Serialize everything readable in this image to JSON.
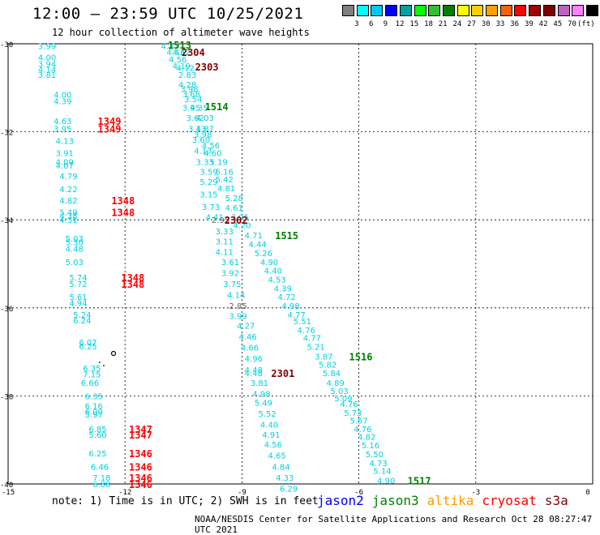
{
  "header": {
    "title": "12:00 – 23:59 UTC 10/25/2021",
    "subtitle": "12 hour collection of altimeter wave heights"
  },
  "colorbar": {
    "colors": [
      "#808080",
      "#00ffff",
      "#00c8ff",
      "#0000ff",
      "#00a0a0",
      "#00ff00",
      "#30c030",
      "#008000",
      "#ffff00",
      "#ffd000",
      "#ffa000",
      "#ff6000",
      "#ff0000",
      "#a00000",
      "#800000",
      "#c060c0",
      "#ff80ff",
      "#000000"
    ],
    "labels": [
      "3",
      "6",
      "9",
      "12",
      "15",
      "18",
      "21",
      "24",
      "27",
      "30",
      "33",
      "36",
      "39",
      "42",
      "45",
      "70"
    ],
    "unit": "(ft)"
  },
  "axes": {
    "y_labels": [
      "-30",
      "-32",
      "-34",
      "-36",
      "-38",
      "-40"
    ],
    "x_labels": [
      "-15",
      "-12",
      "-9",
      "-6",
      "-3",
      "0"
    ]
  },
  "map_data": {
    "swh_labels": [
      {
        "lon": -14.0,
        "lat": -30.05,
        "t": "3.99"
      },
      {
        "lon": -14.0,
        "lat": -30.3,
        "t": "4.00"
      },
      {
        "lon": -14.0,
        "lat": -30.45,
        "t": "3.94"
      },
      {
        "lon": -14.0,
        "lat": -30.58,
        "t": "4.14"
      },
      {
        "lon": -14.0,
        "lat": -30.7,
        "t": "3.81"
      },
      {
        "lon": -13.6,
        "lat": -31.15,
        "t": "4.00"
      },
      {
        "lon": -13.6,
        "lat": -31.3,
        "t": "4.39"
      },
      {
        "lon": -13.6,
        "lat": -31.75,
        "t": "4.63"
      },
      {
        "lon": -13.6,
        "lat": -31.92,
        "t": "3.95"
      },
      {
        "lon": -13.55,
        "lat": -32.2,
        "t": "4.13"
      },
      {
        "lon": -13.55,
        "lat": -32.48,
        "t": "3.91"
      },
      {
        "lon": -13.55,
        "lat": -32.68,
        "t": "4.09"
      },
      {
        "lon": -13.55,
        "lat": -32.76,
        "t": "4.07"
      },
      {
        "lon": -13.45,
        "lat": -33.0,
        "t": "4.79"
      },
      {
        "lon": -13.45,
        "lat": -33.3,
        "t": "4.22"
      },
      {
        "lon": -13.45,
        "lat": -33.55,
        "t": "4.82"
      },
      {
        "lon": -13.45,
        "lat": -33.82,
        "t": "5.49"
      },
      {
        "lon": -13.45,
        "lat": -33.9,
        "t": "4.38"
      },
      {
        "lon": -13.45,
        "lat": -34.0,
        "t": "4.31"
      },
      {
        "lon": -13.3,
        "lat": -34.42,
        "t": "5.03"
      },
      {
        "lon": -13.3,
        "lat": -34.5,
        "t": "5.30"
      },
      {
        "lon": -13.3,
        "lat": -34.65,
        "t": "4.48"
      },
      {
        "lon": -13.3,
        "lat": -34.95,
        "t": "5.03"
      },
      {
        "lon": -13.2,
        "lat": -35.3,
        "t": "5.74"
      },
      {
        "lon": -13.2,
        "lat": -35.45,
        "t": "5.72"
      },
      {
        "lon": -13.2,
        "lat": -35.75,
        "t": "5.61"
      },
      {
        "lon": -13.2,
        "lat": -35.88,
        "t": "4.94"
      },
      {
        "lon": -13.1,
        "lat": -36.15,
        "t": "5.24"
      },
      {
        "lon": -13.1,
        "lat": -36.28,
        "t": "6.24"
      },
      {
        "lon": -12.95,
        "lat": -36.78,
        "t": "6.07"
      },
      {
        "lon": -12.95,
        "lat": -36.87,
        "t": "6.25"
      },
      {
        "lon": -12.85,
        "lat": -37.37,
        "t": "6.35"
      },
      {
        "lon": -12.85,
        "lat": -37.5,
        "t": "7.15"
      },
      {
        "lon": -12.9,
        "lat": -37.7,
        "t": "6.66"
      },
      {
        "lon": -12.8,
        "lat": -38.0,
        "t": "6.35"
      },
      {
        "lon": -12.8,
        "lat": -38.22,
        "t": "6.16"
      },
      {
        "lon": -12.8,
        "lat": -38.35,
        "t": "6.00"
      },
      {
        "lon": -12.8,
        "lat": -38.42,
        "t": "5.97"
      },
      {
        "lon": -12.7,
        "lat": -38.75,
        "t": "6.85"
      },
      {
        "lon": -12.7,
        "lat": -38.88,
        "t": "5.60"
      },
      {
        "lon": -12.7,
        "lat": -39.3,
        "t": "6.25"
      },
      {
        "lon": -12.65,
        "lat": -39.6,
        "t": "6.46"
      },
      {
        "lon": -12.6,
        "lat": -39.85,
        "t": "7.18"
      },
      {
        "lon": -12.6,
        "lat": -40.0,
        "t": "6.88"
      },
      {
        "lon": -10.85,
        "lat": -30.05,
        "t": "4.27"
      },
      {
        "lon": -10.7,
        "lat": -30.18,
        "t": "4.43"
      },
      {
        "lon": -10.55,
        "lat": -30.18,
        "t": "4.62"
      },
      {
        "lon": -10.65,
        "lat": -30.35,
        "t": "4.56"
      },
      {
        "lon": -10.55,
        "lat": -30.5,
        "t": "4.19"
      },
      {
        "lon": -10.45,
        "lat": -30.54,
        "t": "4.12"
      },
      {
        "lon": -10.4,
        "lat": -30.7,
        "t": "2.83"
      },
      {
        "lon": -10.4,
        "lat": -30.92,
        "t": "4.28"
      },
      {
        "lon": -10.35,
        "lat": -31.02,
        "t": "3.98"
      },
      {
        "lon": -10.3,
        "lat": -31.13,
        "t": "3.68"
      },
      {
        "lon": -10.25,
        "lat": -31.25,
        "t": "3.54"
      },
      {
        "lon": -10.3,
        "lat": -31.45,
        "t": "3.95"
      },
      {
        "lon": -10.1,
        "lat": -31.45,
        "t": "4.35"
      },
      {
        "lon": -10.2,
        "lat": -31.68,
        "t": "3.62"
      },
      {
        "lon": -9.95,
        "lat": -31.68,
        "t": "4.03"
      },
      {
        "lon": -10.15,
        "lat": -31.92,
        "t": "3.13"
      },
      {
        "lon": -9.95,
        "lat": -31.92,
        "t": "4.87"
      },
      {
        "lon": -10.0,
        "lat": -32.05,
        "t": "3.98"
      },
      {
        "lon": -10.05,
        "lat": -32.17,
        "t": "3.60"
      },
      {
        "lon": -9.8,
        "lat": -32.3,
        "t": "4.56"
      },
      {
        "lon": -10.0,
        "lat": -32.42,
        "t": "4.13"
      },
      {
        "lon": -9.75,
        "lat": -32.48,
        "t": "4.60"
      },
      {
        "lon": -9.95,
        "lat": -32.68,
        "t": "3.33"
      },
      {
        "lon": -9.6,
        "lat": -32.68,
        "t": "5.19"
      },
      {
        "lon": -9.85,
        "lat": -32.9,
        "t": "3.59"
      },
      {
        "lon": -9.45,
        "lat": -32.9,
        "t": "5.16"
      },
      {
        "lon": -9.85,
        "lat": -33.13,
        "t": "5.29"
      },
      {
        "lon": -9.45,
        "lat": -33.08,
        "t": "5.42"
      },
      {
        "lon": -9.4,
        "lat": -33.28,
        "t": "4.81"
      },
      {
        "lon": -9.85,
        "lat": -33.42,
        "t": "3.15"
      },
      {
        "lon": -9.2,
        "lat": -33.5,
        "t": "5.28"
      },
      {
        "lon": -9.8,
        "lat": -33.7,
        "t": "3.73"
      },
      {
        "lon": -9.2,
        "lat": -33.72,
        "t": "4.61"
      },
      {
        "lon": -9.7,
        "lat": -33.93,
        "t": "4.41"
      },
      {
        "lon": -9.05,
        "lat": -33.93,
        "t": "3.95"
      },
      {
        "lon": -9.55,
        "lat": -34.0,
        "t": "2.95",
        "gray": true
      },
      {
        "lon": -9.0,
        "lat": -34.12,
        "t": "4.20"
      },
      {
        "lon": -9.45,
        "lat": -34.25,
        "t": "3.33"
      },
      {
        "lon": -8.7,
        "lat": -34.35,
        "t": "4.71"
      },
      {
        "lon": -9.45,
        "lat": -34.48,
        "t": "3.11"
      },
      {
        "lon": -8.6,
        "lat": -34.55,
        "t": "4.44"
      },
      {
        "lon": -9.45,
        "lat": -34.72,
        "t": "4.11"
      },
      {
        "lon": -8.45,
        "lat": -34.75,
        "t": "5.26"
      },
      {
        "lon": -9.3,
        "lat": -34.95,
        "t": "3.61"
      },
      {
        "lon": -8.3,
        "lat": -34.95,
        "t": "4.90"
      },
      {
        "lon": -8.2,
        "lat": -35.15,
        "t": "4.40"
      },
      {
        "lon": -9.3,
        "lat": -35.2,
        "t": "3.92"
      },
      {
        "lon": -8.1,
        "lat": -35.35,
        "t": "4.53"
      },
      {
        "lon": -9.25,
        "lat": -35.45,
        "t": "3.75"
      },
      {
        "lon": -7.95,
        "lat": -35.55,
        "t": "4.39"
      },
      {
        "lon": -9.15,
        "lat": -35.7,
        "t": "4.14"
      },
      {
        "lon": -7.85,
        "lat": -35.75,
        "t": "4.72"
      },
      {
        "lon": -7.75,
        "lat": -35.95,
        "t": "4.98"
      },
      {
        "lon": -9.1,
        "lat": -35.95,
        "t": "2.85",
        "gray": true
      },
      {
        "lon": -7.6,
        "lat": -36.15,
        "t": "4.77"
      },
      {
        "lon": -9.1,
        "lat": -36.18,
        "t": "3.99"
      },
      {
        "lon": -7.45,
        "lat": -36.3,
        "t": "5.51"
      },
      {
        "lon": -8.9,
        "lat": -36.4,
        "t": "4.27"
      },
      {
        "lon": -7.35,
        "lat": -36.5,
        "t": "4.76"
      },
      {
        "lon": -8.85,
        "lat": -36.65,
        "t": "4.46"
      },
      {
        "lon": -7.2,
        "lat": -36.68,
        "t": "4.77"
      },
      {
        "lon": -8.8,
        "lat": -36.9,
        "t": "4.66"
      },
      {
        "lon": -7.1,
        "lat": -36.88,
        "t": "5.21"
      },
      {
        "lon": -6.9,
        "lat": -37.1,
        "t": "3.87"
      },
      {
        "lon": -8.7,
        "lat": -37.15,
        "t": "4.96"
      },
      {
        "lon": -6.8,
        "lat": -37.28,
        "t": "5.82"
      },
      {
        "lon": -8.7,
        "lat": -37.4,
        "t": "4.48"
      },
      {
        "lon": -8.7,
        "lat": -37.48,
        "t": "4.48"
      },
      {
        "lon": -6.7,
        "lat": -37.48,
        "t": "5.84"
      },
      {
        "lon": -8.55,
        "lat": -37.7,
        "t": "3.81"
      },
      {
        "lon": -6.6,
        "lat": -37.7,
        "t": "4.89"
      },
      {
        "lon": -6.5,
        "lat": -37.88,
        "t": "5.03"
      },
      {
        "lon": -8.5,
        "lat": -37.95,
        "t": "4.98"
      },
      {
        "lon": -6.4,
        "lat": -38.05,
        "t": "5.09"
      },
      {
        "lon": -8.45,
        "lat": -38.15,
        "t": "5.49"
      },
      {
        "lon": -6.25,
        "lat": -38.18,
        "t": "4.76"
      },
      {
        "lon": -6.15,
        "lat": -38.38,
        "t": "5.73"
      },
      {
        "lon": -8.35,
        "lat": -38.4,
        "t": "5.52"
      },
      {
        "lon": -6.0,
        "lat": -38.55,
        "t": "5.57"
      },
      {
        "lon": -8.3,
        "lat": -38.65,
        "t": "4.40"
      },
      {
        "lon": -5.9,
        "lat": -38.75,
        "t": "4.76"
      },
      {
        "lon": -8.25,
        "lat": -38.88,
        "t": "4.91"
      },
      {
        "lon": -5.8,
        "lat": -38.92,
        "t": "4.82"
      },
      {
        "lon": -8.2,
        "lat": -39.1,
        "t": "4.56"
      },
      {
        "lon": -5.7,
        "lat": -39.12,
        "t": "5.16"
      },
      {
        "lon": -5.6,
        "lat": -39.32,
        "t": "5.50"
      },
      {
        "lon": -8.1,
        "lat": -39.35,
        "t": "4.65"
      },
      {
        "lon": -5.5,
        "lat": -39.52,
        "t": "4.73"
      },
      {
        "lon": -8.0,
        "lat": -39.6,
        "t": "4.84"
      },
      {
        "lon": -5.4,
        "lat": -39.7,
        "t": "5.14"
      },
      {
        "lon": -7.9,
        "lat": -39.85,
        "t": "4.33"
      },
      {
        "lon": -5.3,
        "lat": -39.92,
        "t": "4.90"
      },
      {
        "lon": -7.8,
        "lat": -40.1,
        "t": "6.29"
      }
    ],
    "time_labels": [
      {
        "lon": -10.6,
        "lat": -30.02,
        "t": "1513",
        "c": "#008000"
      },
      {
        "lon": -10.25,
        "lat": -30.18,
        "t": "2304",
        "c": "#800000"
      },
      {
        "lon": -9.9,
        "lat": -30.52,
        "t": "2303",
        "c": "#800000"
      },
      {
        "lon": -9.65,
        "lat": -31.42,
        "t": "1514",
        "c": "#008000"
      },
      {
        "lon": -12.4,
        "lat": -31.75,
        "t": "1349",
        "c": "#ff0000"
      },
      {
        "lon": -12.4,
        "lat": -31.92,
        "t": "1349",
        "c": "#ff0000"
      },
      {
        "lon": -12.05,
        "lat": -33.55,
        "t": "1348",
        "c": "#ff0000"
      },
      {
        "lon": -12.05,
        "lat": -33.82,
        "t": "1348",
        "c": "#ff0000"
      },
      {
        "lon": -9.15,
        "lat": -34.0,
        "t": "2302",
        "c": "#800000"
      },
      {
        "lon": -7.85,
        "lat": -34.35,
        "t": "1515",
        "c": "#008000"
      },
      {
        "lon": -11.8,
        "lat": -35.3,
        "t": "1348",
        "c": "#ff0000"
      },
      {
        "lon": -11.8,
        "lat": -35.45,
        "t": "1348",
        "c": "#ff0000"
      },
      {
        "lon": -5.95,
        "lat": -37.1,
        "t": "1516",
        "c": "#008000"
      },
      {
        "lon": -7.95,
        "lat": -37.48,
        "t": "2301",
        "c": "#800000"
      },
      {
        "lon": -11.6,
        "lat": -38.75,
        "t": "1347",
        "c": "#ff0000"
      },
      {
        "lon": -11.6,
        "lat": -38.88,
        "t": "1347",
        "c": "#ff0000"
      },
      {
        "lon": -11.6,
        "lat": -39.3,
        "t": "1346",
        "c": "#ff0000"
      },
      {
        "lon": -11.6,
        "lat": -39.6,
        "t": "1346",
        "c": "#ff0000"
      },
      {
        "lon": -11.6,
        "lat": -39.85,
        "t": "1346",
        "c": "#ff0000"
      },
      {
        "lon": -11.6,
        "lat": -40.0,
        "t": "1346",
        "c": "#ff0000"
      },
      {
        "lon": -4.45,
        "lat": -39.92,
        "t": "1517",
        "c": "#008000"
      }
    ]
  },
  "footer": {
    "note": "note: 1) Time is in UTC; 2) SWH is in feet",
    "satellites": [
      {
        "name": "jason2",
        "color": "#0000ff"
      },
      {
        "name": "jason3",
        "color": "#008000"
      },
      {
        "name": "altika",
        "color": "#ff9900"
      },
      {
        "name": "cryosat",
        "color": "#ff0000"
      },
      {
        "name": "s3a",
        "color": "#800000"
      }
    ],
    "credit": "NOAA/NESDIS Center for Satellite Applications and Research   Oct 28 08:27:47 UTC 2021"
  }
}
